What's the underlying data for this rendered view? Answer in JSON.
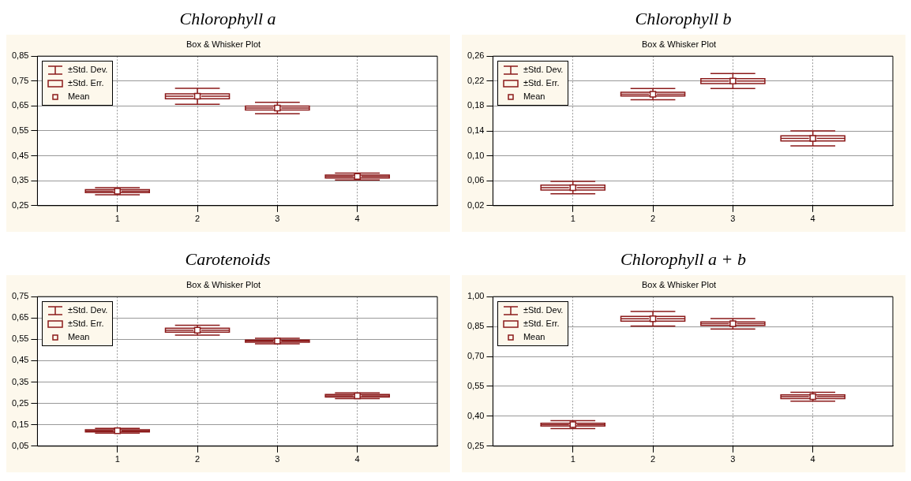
{
  "chart_data": [
    {
      "type": "box",
      "title": "Chlorophyll a",
      "subtitle": "Box & Whisker Plot",
      "categories": [
        "1",
        "2",
        "3",
        "4"
      ],
      "color": "#8b1a1a",
      "grid": true,
      "marker": "square",
      "ylim": [
        0.25,
        0.85
      ],
      "yticks": [
        {
          "value": 0.25,
          "label": "0,25"
        },
        {
          "value": 0.35,
          "label": "0,35"
        },
        {
          "value": 0.45,
          "label": "0,45"
        },
        {
          "value": 0.55,
          "label": "0,55"
        },
        {
          "value": 0.65,
          "label": "0,65"
        },
        {
          "value": 0.75,
          "label": "0,75"
        },
        {
          "value": 0.85,
          "label": "0,85"
        }
      ],
      "boxes": [
        {
          "low": 0.294,
          "q1": 0.302,
          "median": 0.308,
          "q3": 0.314,
          "high": 0.322,
          "mean": 0.308
        },
        {
          "low": 0.657,
          "q1": 0.679,
          "median": 0.689,
          "q3": 0.699,
          "high": 0.721,
          "mean": 0.689
        },
        {
          "low": 0.619,
          "q1": 0.634,
          "median": 0.642,
          "q3": 0.65,
          "high": 0.665,
          "mean": 0.642
        },
        {
          "low": 0.353,
          "q1": 0.361,
          "median": 0.367,
          "q3": 0.373,
          "high": 0.381,
          "mean": 0.367
        }
      ],
      "annotations": [
        "±Std. Dev.",
        "±Std. Err.",
        "Mean"
      ]
    },
    {
      "type": "box",
      "title": "Chlorophyll b",
      "subtitle": "Box & Whisker Plot",
      "categories": [
        "1",
        "2",
        "3",
        "4"
      ],
      "color": "#8b1a1a",
      "grid": true,
      "marker": "square",
      "ylim": [
        0.02,
        0.26
      ],
      "yticks": [
        {
          "value": 0.02,
          "label": "0,02"
        },
        {
          "value": 0.06,
          "label": "0,06"
        },
        {
          "value": 0.1,
          "label": "0,10"
        },
        {
          "value": 0.14,
          "label": "0,14"
        },
        {
          "value": 0.18,
          "label": "0,18"
        },
        {
          "value": 0.22,
          "label": "0,22"
        },
        {
          "value": 0.26,
          "label": "0,26"
        }
      ],
      "boxes": [
        {
          "low": 0.039,
          "q1": 0.045,
          "median": 0.049,
          "q3": 0.053,
          "high": 0.059,
          "mean": 0.049
        },
        {
          "low": 0.19,
          "q1": 0.196,
          "median": 0.199,
          "q3": 0.202,
          "high": 0.208,
          "mean": 0.199
        },
        {
          "low": 0.208,
          "q1": 0.216,
          "median": 0.22,
          "q3": 0.224,
          "high": 0.232,
          "mean": 0.22
        },
        {
          "low": 0.116,
          "q1": 0.124,
          "median": 0.128,
          "q3": 0.132,
          "high": 0.14,
          "mean": 0.128
        }
      ],
      "annotations": [
        "±Std. Dev.",
        "±Std. Err.",
        "Mean"
      ]
    },
    {
      "type": "box",
      "title": "Carotenoids",
      "subtitle": "Box & Whisker Plot",
      "categories": [
        "1",
        "2",
        "3",
        "4"
      ],
      "color": "#8b1a1a",
      "grid": true,
      "marker": "square",
      "ylim": [
        0.05,
        0.75
      ],
      "yticks": [
        {
          "value": 0.05,
          "label": "0,05"
        },
        {
          "value": 0.15,
          "label": "0,15"
        },
        {
          "value": 0.25,
          "label": "0,25"
        },
        {
          "value": 0.35,
          "label": "0,35"
        },
        {
          "value": 0.45,
          "label": "0,45"
        },
        {
          "value": 0.55,
          "label": "0,55"
        },
        {
          "value": 0.65,
          "label": "0,65"
        },
        {
          "value": 0.75,
          "label": "0,75"
        }
      ],
      "boxes": [
        {
          "low": 0.111,
          "q1": 0.117,
          "median": 0.122,
          "q3": 0.127,
          "high": 0.133,
          "mean": 0.122
        },
        {
          "low": 0.57,
          "q1": 0.584,
          "median": 0.593,
          "q3": 0.602,
          "high": 0.616,
          "mean": 0.593
        },
        {
          "low": 0.529,
          "q1": 0.537,
          "median": 0.542,
          "q3": 0.547,
          "high": 0.555,
          "mean": 0.542
        },
        {
          "low": 0.273,
          "q1": 0.28,
          "median": 0.286,
          "q3": 0.292,
          "high": 0.299,
          "mean": 0.286
        }
      ],
      "annotations": [
        "±Std. Dev.",
        "±Std. Err.",
        "Mean"
      ]
    },
    {
      "type": "box",
      "title": "Chlorophyll a + b",
      "subtitle": "Box & Whisker Plot",
      "categories": [
        "1",
        "2",
        "3",
        "4"
      ],
      "color": "#8b1a1a",
      "grid": true,
      "marker": "square",
      "ylim": [
        0.25,
        1.0
      ],
      "yticks": [
        {
          "value": 0.25,
          "label": "0,25"
        },
        {
          "value": 0.4,
          "label": "0,40"
        },
        {
          "value": 0.55,
          "label": "0,55"
        },
        {
          "value": 0.7,
          "label": "0,70"
        },
        {
          "value": 0.85,
          "label": "0,85"
        },
        {
          "value": 1.0,
          "label": "1,00"
        }
      ],
      "boxes": [
        {
          "low": 0.338,
          "q1": 0.351,
          "median": 0.358,
          "q3": 0.365,
          "high": 0.378,
          "mean": 0.358
        },
        {
          "low": 0.852,
          "q1": 0.877,
          "median": 0.889,
          "q3": 0.901,
          "high": 0.926,
          "mean": 0.889
        },
        {
          "low": 0.838,
          "q1": 0.855,
          "median": 0.864,
          "q3": 0.873,
          "high": 0.89,
          "mean": 0.864
        },
        {
          "low": 0.476,
          "q1": 0.489,
          "median": 0.498,
          "q3": 0.507,
          "high": 0.52,
          "mean": 0.498
        }
      ],
      "annotations": [
        "±Std. Dev.",
        "±Std. Err.",
        "Mean"
      ]
    }
  ]
}
